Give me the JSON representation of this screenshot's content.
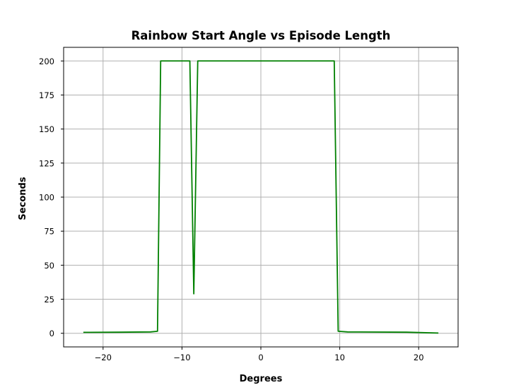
{
  "chart_data": {
    "type": "line",
    "title": "Rainbow Start Angle vs Episode Length",
    "xlabel": "Degrees",
    "ylabel": "Seconds",
    "xlim": [
      -25,
      25
    ],
    "ylim": [
      -10,
      210
    ],
    "xticks": [
      -20,
      -10,
      0,
      10,
      20
    ],
    "xtick_labels": [
      "−20",
      "−10",
      "0",
      "10",
      "20"
    ],
    "yticks": [
      0,
      25,
      50,
      75,
      100,
      125,
      150,
      175,
      200
    ],
    "ytick_labels": [
      "0",
      "25",
      "50",
      "75",
      "100",
      "125",
      "150",
      "175",
      "200"
    ],
    "grid": true,
    "series": [
      {
        "color": "#008000",
        "x": [
          -22.5,
          -18,
          -14,
          -13.1,
          -12.7,
          -9.0,
          -8.5,
          -8.0,
          9.3,
          9.8,
          11,
          18.5,
          22.5
        ],
        "y": [
          0.7,
          0.8,
          1.0,
          1.5,
          200,
          200,
          29,
          200,
          200,
          1.5,
          1.0,
          0.8,
          0.2
        ]
      }
    ]
  }
}
